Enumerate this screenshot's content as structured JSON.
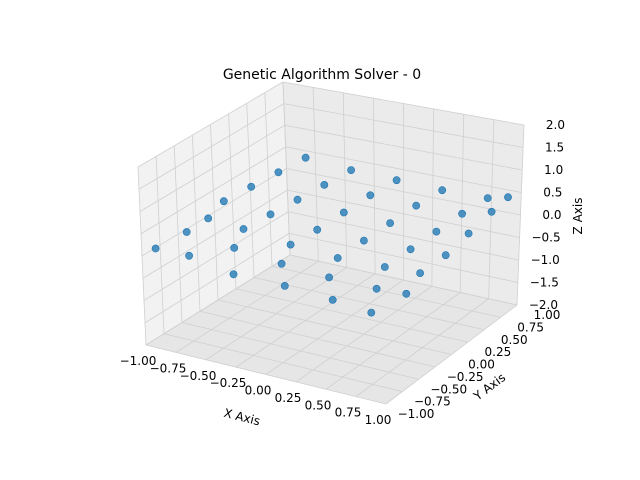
{
  "chart_data": {
    "type": "scatter3d",
    "title": "Genetic Algorithm Solver - 0",
    "xlabel": "X Axis",
    "ylabel": "Y Axis",
    "zlabel": "Z Axis",
    "xlim": [
      -1.0,
      1.0
    ],
    "ylim": [
      -1.0,
      1.0
    ],
    "zlim": [
      -2.0,
      2.0
    ],
    "xticks": [
      "−1.00",
      "−0.75",
      "−0.50",
      "−0.25",
      "0.00",
      "0.25",
      "0.50",
      "0.75",
      "1.00"
    ],
    "yticks": [
      "−1.00",
      "−0.75",
      "−0.50",
      "−0.25",
      "0.00",
      "0.25",
      "0.50",
      "0.75",
      "1.00"
    ],
    "zticks": [
      "−2.0",
      "−1.5",
      "−1.0",
      "−0.5",
      "0.0",
      "0.5",
      "1.0",
      "1.5",
      "2.0"
    ],
    "grid": true,
    "marker_color": "#1f77b4",
    "points": [
      [
        -0.95,
        -0.95,
        0.15
      ],
      [
        -0.7,
        -0.9,
        0.1
      ],
      [
        -0.3,
        -0.95,
        0.0
      ],
      [
        0.1,
        -0.9,
        -0.05
      ],
      [
        0.5,
        -0.9,
        -0.1
      ],
      [
        0.85,
        -0.95,
        -0.1
      ],
      [
        -0.9,
        -0.6,
        0.2
      ],
      [
        -0.5,
        -0.6,
        0.1
      ],
      [
        -0.1,
        -0.6,
        0.0
      ],
      [
        0.3,
        -0.6,
        -0.05
      ],
      [
        0.7,
        -0.6,
        -0.05
      ],
      [
        0.95,
        -0.6,
        0.0
      ],
      [
        -0.9,
        -0.3,
        0.2
      ],
      [
        -0.6,
        -0.3,
        0.15
      ],
      [
        -0.2,
        -0.3,
        0.05
      ],
      [
        0.2,
        -0.3,
        0.0
      ],
      [
        0.6,
        -0.3,
        0.05
      ],
      [
        0.9,
        -0.3,
        0.1
      ],
      [
        -0.95,
        0.0,
        0.25
      ],
      [
        -0.55,
        0.0,
        0.2
      ],
      [
        -0.15,
        0.0,
        0.1
      ],
      [
        0.25,
        0.0,
        0.1
      ],
      [
        0.65,
        0.0,
        0.15
      ],
      [
        0.95,
        0.0,
        0.2
      ],
      [
        -0.9,
        0.3,
        0.3
      ],
      [
        -0.5,
        0.3,
        0.25
      ],
      [
        -0.1,
        0.3,
        0.2
      ],
      [
        0.3,
        0.3,
        0.2
      ],
      [
        0.7,
        0.3,
        0.25
      ],
      [
        0.95,
        0.35,
        0.3
      ],
      [
        -0.85,
        0.6,
        0.35
      ],
      [
        -0.45,
        0.6,
        0.3
      ],
      [
        -0.05,
        0.6,
        0.3
      ],
      [
        0.35,
        0.6,
        0.3
      ],
      [
        0.75,
        0.6,
        0.35
      ],
      [
        0.95,
        0.7,
        0.4
      ],
      [
        -0.8,
        0.9,
        0.4
      ],
      [
        -0.4,
        0.9,
        0.35
      ],
      [
        0.0,
        0.9,
        0.35
      ],
      [
        0.4,
        0.9,
        0.35
      ],
      [
        0.8,
        0.9,
        0.4
      ],
      [
        0.95,
        0.95,
        0.45
      ]
    ]
  }
}
